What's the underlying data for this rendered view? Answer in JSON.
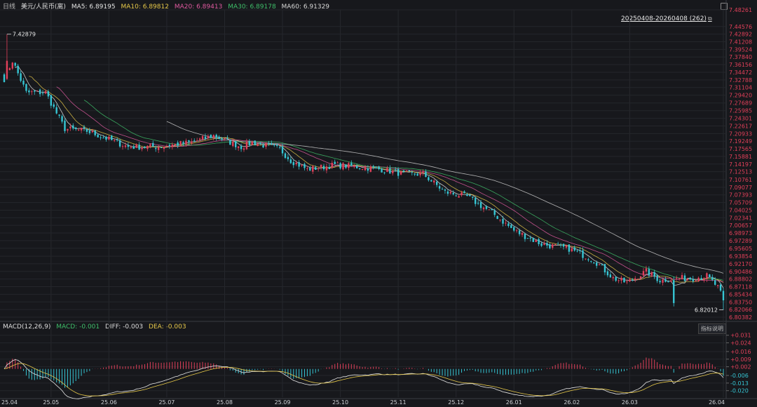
{
  "header": {
    "period": "日线",
    "symbol": "美元/人民币(离)",
    "ma5": "MA5: 6.89195",
    "ma10": "MA10: 6.89812",
    "ma20": "MA20: 6.89413",
    "ma30": "MA30: 6.89178",
    "ma60": "MA60: 6.91329",
    "range": "20250408-20260408 (262)"
  },
  "macd_header": {
    "title": "MACD(12,26,9)",
    "macd": "MACD: -0.001",
    "diff": "DIFF: -0.003",
    "dea": "DEA: -0.003",
    "indicator_button": "指标说明"
  },
  "colors": {
    "background": "#17181c",
    "up": "#e2405a",
    "down": "#36c6d4",
    "ma5": "#e6e6e6",
    "ma10": "#e7c94a",
    "ma20": "#e05aa0",
    "ma30": "#3fbf6a",
    "ma60": "#cfcfcf",
    "axis_up": "#e2405a"
  },
  "chart_data": [
    {
      "type": "candlestick",
      "title": "美元/人民币(离) 日线",
      "x_ticks": [
        "25.04",
        "25.05",
        "25.06",
        "25.07",
        "25.08",
        "25.09",
        "25.10",
        "25.11",
        "25.12",
        "26.01",
        "26.02",
        "26.03",
        "26.04"
      ],
      "y_ticks": [
        7.48261,
        7.44576,
        7.42892,
        7.41208,
        7.39524,
        7.3784,
        7.36156,
        7.34472,
        7.32788,
        7.31104,
        7.2942,
        7.27689,
        7.25985,
        7.24301,
        7.22617,
        7.20933,
        7.19249,
        7.17565,
        7.15881,
        7.14197,
        7.12513,
        7.10761,
        7.09077,
        7.07393,
        7.05709,
        7.04025,
        7.02341,
        7.00657,
        6.98973,
        6.97289,
        6.95605,
        6.93854,
        6.9217,
        6.90486,
        6.88802,
        6.87118,
        6.85434,
        6.8375,
        6.82066,
        6.80382
      ],
      "ylim": [
        6.80382,
        7.48261
      ],
      "annotations": {
        "high": "7.42879",
        "low": "6.82012"
      },
      "close_anchors": [
        [
          0,
          7.33
        ],
        [
          3,
          7.37
        ],
        [
          8,
          7.3
        ],
        [
          15,
          7.3
        ],
        [
          22,
          7.22
        ],
        [
          30,
          7.215
        ],
        [
          45,
          7.18
        ],
        [
          55,
          7.18
        ],
        [
          68,
          7.19
        ],
        [
          76,
          7.205
        ],
        [
          86,
          7.18
        ],
        [
          90,
          7.19
        ],
        [
          100,
          7.175
        ],
        [
          104,
          7.15
        ],
        [
          110,
          7.13
        ],
        [
          120,
          7.14
        ],
        [
          130,
          7.135
        ],
        [
          137,
          7.13
        ],
        [
          145,
          7.12
        ],
        [
          152,
          7.12
        ],
        [
          160,
          7.08
        ],
        [
          168,
          7.07
        ],
        [
          178,
          7.03
        ],
        [
          185,
          6.995
        ],
        [
          195,
          6.965
        ],
        [
          205,
          6.955
        ],
        [
          214,
          6.93
        ],
        [
          221,
          6.89
        ],
        [
          226,
          6.88
        ],
        [
          233,
          6.905
        ],
        [
          238,
          6.885
        ],
        [
          244,
          6.89
        ],
        [
          250,
          6.89
        ],
        [
          255,
          6.895
        ],
        [
          259,
          6.87
        ],
        [
          261,
          6.842
        ]
      ],
      "ma_last": {
        "MA5": 6.89195,
        "MA10": 6.89812,
        "MA20": 6.89413,
        "MA30": 6.89178,
        "MA60": 6.91329
      }
    },
    {
      "type": "macd",
      "title": "MACD(12,26,9)",
      "y_ticks": [
        0.031,
        0.024,
        0.016,
        0.009,
        0.002,
        -0.006,
        -0.013,
        -0.02
      ],
      "ylim": [
        -0.026,
        0.036
      ],
      "last": {
        "MACD": -0.001,
        "DIFF": -0.003,
        "DEA": -0.003
      }
    }
  ]
}
